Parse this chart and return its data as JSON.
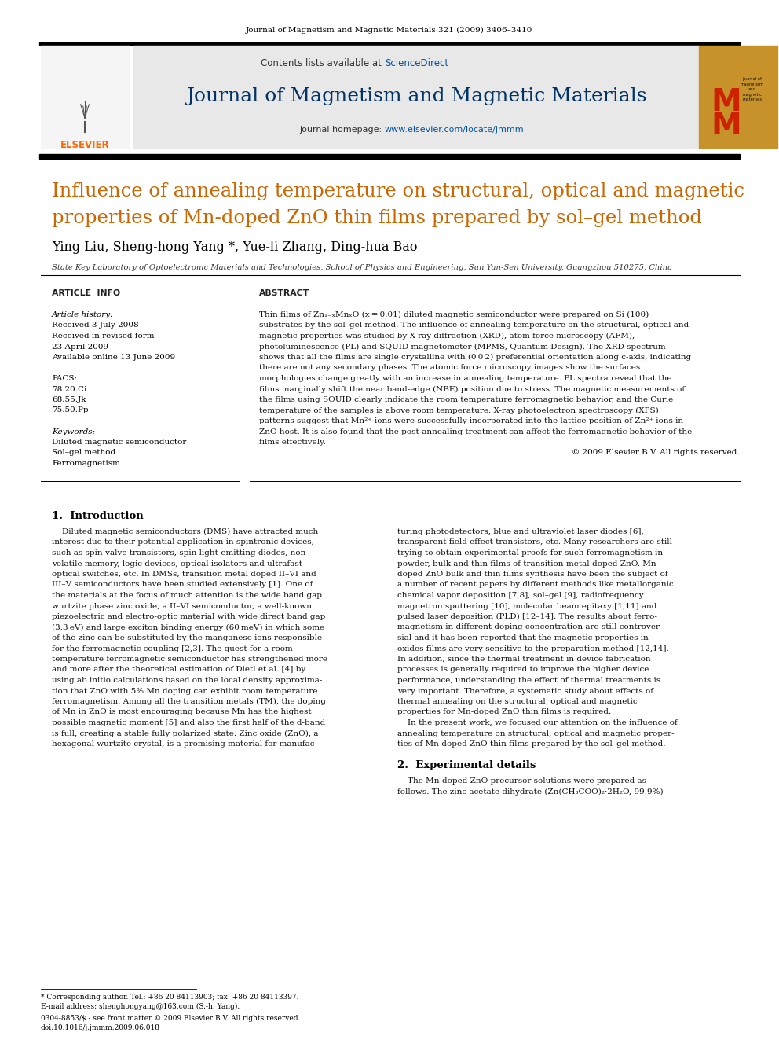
{
  "page_bg": "#ffffff",
  "top_journal_ref": "Journal of Magnetism and Magnetic Materials 321 (2009) 3406–3410",
  "header_bg": "#e8e8e8",
  "journal_title": "Journal of Magnetism and Magnetic Materials",
  "journal_title_color": "#003366",
  "article_title_color": "#cc6600",
  "authors": "Ying Liu, Sheng-hong Yang *, Yue-li Zhang, Ding-hua Bao",
  "affiliation": "State Key Laboratory of Optoelectronic Materials and Technologies, School of Physics and Engineering, Sun Yan-Sen University, Guangzhou 510275, China",
  "section_article_info": "ARTICLE  INFO",
  "section_abstract": "ABSTRACT",
  "article_history_label": "Article history:",
  "received1": "Received 3 July 2008",
  "received2": "Received in revised form",
  "received3": "23 April 2009",
  "available": "Available online 13 June 2009",
  "pacs_label": "PACS:",
  "pacs1": "78.20.Ci",
  "pacs2": "68.55.Jk",
  "pacs3": "75.50.Pp",
  "keywords_label": "Keywords:",
  "keyword1": "Diluted magnetic semiconductor",
  "keyword2": "Sol–gel method",
  "keyword3": "Ferromagnetism",
  "copyright": "© 2009 Elsevier B.V. All rights reserved.",
  "section1_title": "1.  Introduction",
  "section2_title": "2.  Experimental details",
  "footnote_star": "* Corresponding author. Tel.: +86 20 84113903; fax: +86 20 84113397.",
  "footnote_email": "E-mail address: shenghongyang@163.com (S.-h. Yang).",
  "footnote_issn": "0304-8853/$ - see front matter © 2009 Elsevier B.V. All rights reserved.",
  "footnote_doi": "doi:10.1016/j.jmmm.2009.06.018",
  "abstract_lines": [
    "Thin films of Zn₁₋ₓMnₓO (x = 0.01) diluted magnetic semiconductor were prepared on Si (100)",
    "substrates by the sol–gel method. The influence of annealing temperature on the structural, optical and",
    "magnetic properties was studied by X-ray diffraction (XRD), atom force microscopy (AFM),",
    "photoluminescence (PL) and SQUID magnetometer (MPMS, Quantum Design). The XRD spectrum",
    "shows that all the films are single crystalline with (0 0 2) preferential orientation along c-axis, indicating",
    "there are not any secondary phases. The atomic force microscopy images show the surfaces",
    "morphologies change greatly with an increase in annealing temperature. PL spectra reveal that the",
    "films marginally shift the near band-edge (NBE) position due to stress. The magnetic measurements of",
    "the films using SQUID clearly indicate the room temperature ferromagnetic behavior, and the Curie",
    "temperature of the samples is above room temperature. X-ray photoelectron spectroscopy (XPS)",
    "patterns suggest that Mn²⁺ ions were successfully incorporated into the lattice position of Zn²⁺ ions in",
    "ZnO host. It is also found that the post-annealing treatment can affect the ferromagnetic behavior of the",
    "films effectively."
  ],
  "intro_col1_lines": [
    "    Diluted magnetic semiconductors (DMS) have attracted much",
    "interest due to their potential application in spintronic devices,",
    "such as spin-valve transistors, spin light-emitting diodes, non-",
    "volatile memory, logic devices, optical isolators and ultrafast",
    "optical switches, etc. In DMSs, transition metal doped II–VI and",
    "III–V semiconductors have been studied extensively [1]. One of",
    "the materials at the focus of much attention is the wide band gap",
    "wurtzite phase zinc oxide, a II–VI semiconductor, a well-known",
    "piezoelectric and electro-optic material with wide direct band gap",
    "(3.3 eV) and large exciton binding energy (60 meV) in which some",
    "of the zinc can be substituted by the manganese ions responsible",
    "for the ferromagnetic coupling [2,3]. The quest for a room",
    "temperature ferromagnetic semiconductor has strengthened more",
    "and more after the theoretical estimation of Dietl et al. [4] by",
    "using ab initio calculations based on the local density approxima-",
    "tion that ZnO with 5% Mn doping can exhibit room temperature",
    "ferromagnetism. Among all the transition metals (TM), the doping",
    "of Mn in ZnO is most encouraging because Mn has the highest",
    "possible magnetic moment [5] and also the first half of the d-band",
    "is full, creating a stable fully polarized state. Zinc oxide (ZnO), a",
    "hexagonal wurtzite crystal, is a promising material for manufac-"
  ],
  "intro_col2_lines": [
    "turing photodetectors, blue and ultraviolet laser diodes [6],",
    "transparent field effect transistors, etc. Many researchers are still",
    "trying to obtain experimental proofs for such ferromagnetism in",
    "powder, bulk and thin films of transition-metal-doped ZnO. Mn-",
    "doped ZnO bulk and thin films synthesis have been the subject of",
    "a number of recent papers by different methods like metallorganic",
    "chemical vapor deposition [7,8], sol–gel [9], radiofrequency",
    "magnetron sputtering [10], molecular beam epitaxy [1,11] and",
    "pulsed laser deposition (PLD) [12–14]. The results about ferro-",
    "magnetism in different doping concentration are still controver-",
    "sial and it has been reported that the magnetic properties in",
    "oxides films are very sensitive to the preparation method [12,14].",
    "In addition, since the thermal treatment in device fabrication",
    "processes is generally required to improve the higher device",
    "performance, understanding the effect of thermal treatments is",
    "very important. Therefore, a systematic study about effects of",
    "thermal annealing on the structural, optical and magnetic",
    "properties for Mn-doped ZnO thin films is required.",
    "    In the present work, we focused our attention on the influence of",
    "annealing temperature on structural, optical and magnetic proper-",
    "ties of Mn-doped ZnO thin films prepared by the sol–gel method."
  ],
  "exp_col2_lines": [
    "    The Mn-doped ZnO precursor solutions were prepared as",
    "follows. The zinc acetate dihydrate (Zn(CH₃COO)₂·2H₂O, 99.9%)"
  ]
}
